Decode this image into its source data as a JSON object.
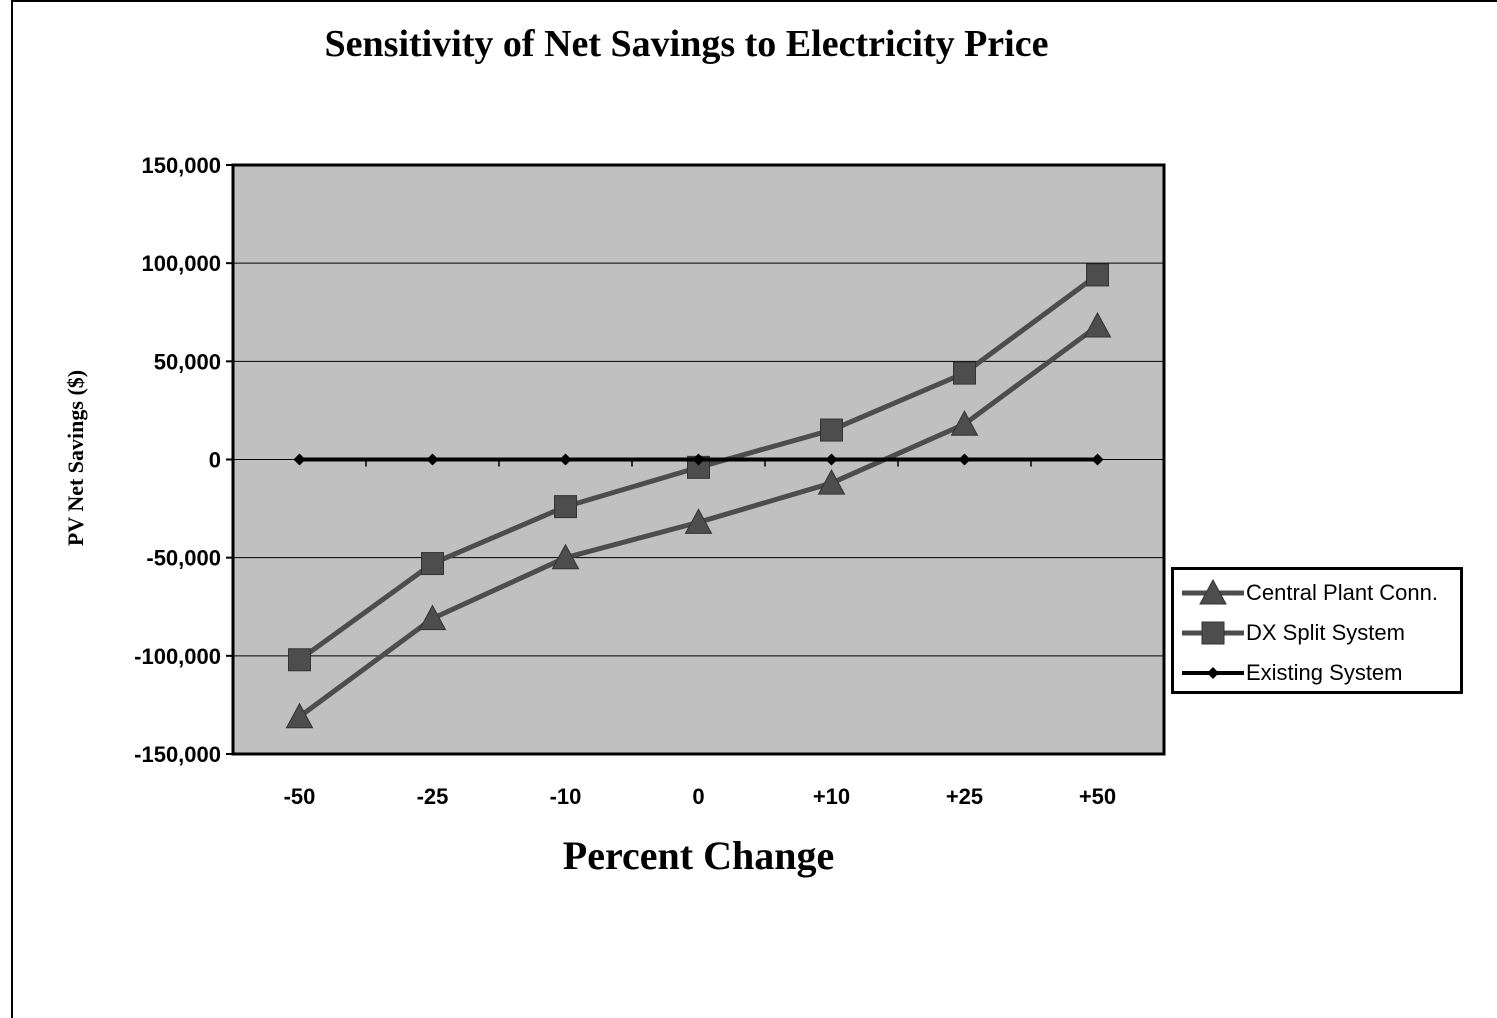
{
  "chart_data": {
    "type": "line",
    "title": "Sensitivity of Net Savings to Electricity Price",
    "xlabel": "Percent Change",
    "ylabel": "PV Net Savings ($)",
    "categories": [
      "-50",
      "-25",
      "-10",
      "0",
      "+10",
      "+25",
      "+50"
    ],
    "ylim": [
      -150000,
      150000
    ],
    "yticks": [
      150000,
      100000,
      50000,
      0,
      -50000,
      -100000,
      -150000
    ],
    "ytick_labels": [
      "150,000",
      "100,000",
      "50,000",
      "0",
      "-50,000",
      "-100,000",
      "-150,000"
    ],
    "grid": "horizontal",
    "legend_position": "right",
    "plot_background": "#c0c0c0",
    "series": [
      {
        "name": "Central Plant Conn.",
        "marker": "triangle",
        "color": "#4d4d4d",
        "values": [
          -131000,
          -81000,
          -50000,
          -32000,
          -12000,
          18000,
          68000
        ]
      },
      {
        "name": "DX Split System",
        "marker": "square",
        "color": "#4d4d4d",
        "values": [
          -102000,
          -53000,
          -24000,
          -4000,
          15000,
          44000,
          94000
        ]
      },
      {
        "name": "Existing System",
        "marker": "diamond",
        "color": "#000000",
        "values": [
          0,
          0,
          0,
          0,
          0,
          0,
          0
        ]
      }
    ]
  }
}
